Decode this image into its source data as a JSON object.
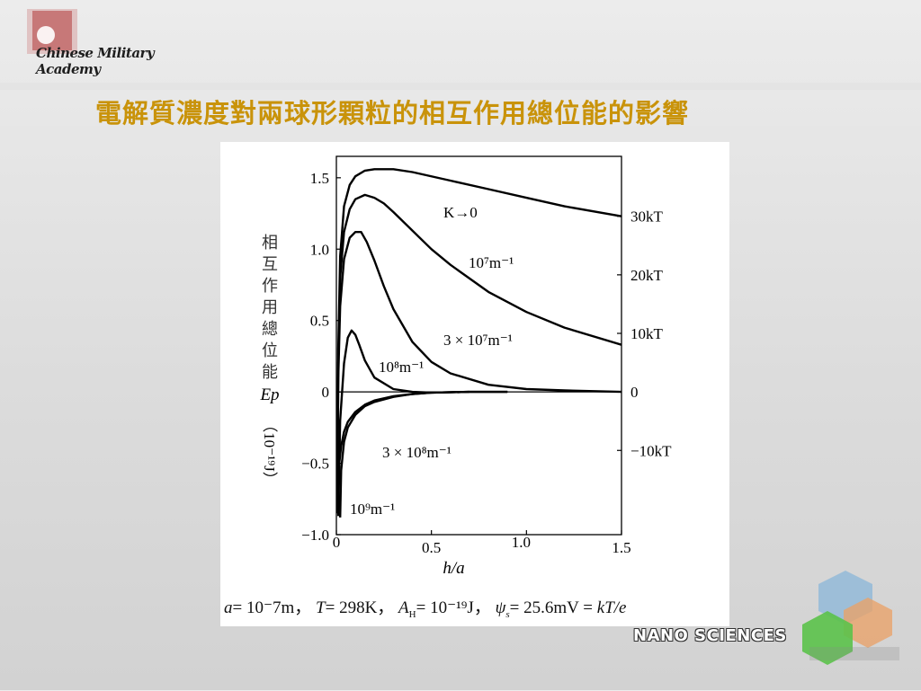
{
  "header": {
    "logo_text": "Chinese Military Academy",
    "title": "電解質濃度對兩球形顆粒的相互作用總位能的影響"
  },
  "chart_data": {
    "type": "line",
    "title": "",
    "xlabel": "h/a",
    "ylabel_chars": [
      "相",
      "互",
      "作",
      "用",
      "總",
      "位",
      "能"
    ],
    "ylabel_symbol": "Ep",
    "ylabel_unit": "（10⁻¹⁹J）",
    "xlim": [
      0,
      1.5
    ],
    "ylim": [
      -1.0,
      1.65
    ],
    "x_ticks": [
      "0",
      "0.5",
      "1.0",
      "1.5"
    ],
    "y_ticks": [
      "1.5",
      "1.0",
      "0.5",
      "0",
      "−0.5",
      "−1.0"
    ],
    "right_axis_ticks": [
      {
        "label": "30kT",
        "value": 1.23
      },
      {
        "label": "20kT",
        "value": 0.82
      },
      {
        "label": "10kT",
        "value": 0.41
      },
      {
        "label": "0",
        "value": 0
      },
      {
        "label": "−10kT",
        "value": -0.41
      }
    ],
    "series": [
      {
        "name": "K→0",
        "x": [
          0.005,
          0.01,
          0.02,
          0.04,
          0.07,
          0.1,
          0.15,
          0.2,
          0.3,
          0.4,
          0.6,
          0.8,
          1.0,
          1.2,
          1.5
        ],
        "y": [
          -0.8,
          0.3,
          0.95,
          1.3,
          1.45,
          1.51,
          1.55,
          1.56,
          1.56,
          1.54,
          1.48,
          1.42,
          1.36,
          1.3,
          1.23
        ]
      },
      {
        "name": "10⁷m⁻¹",
        "x": [
          0.005,
          0.01,
          0.02,
          0.04,
          0.07,
          0.1,
          0.15,
          0.2,
          0.25,
          0.3,
          0.4,
          0.5,
          0.6,
          0.8,
          1.0,
          1.2,
          1.5
        ],
        "y": [
          -0.8,
          0.2,
          0.8,
          1.12,
          1.28,
          1.35,
          1.38,
          1.36,
          1.32,
          1.26,
          1.13,
          1.0,
          0.89,
          0.7,
          0.56,
          0.45,
          0.33
        ]
      },
      {
        "name": "3 × 10⁷m⁻¹",
        "x": [
          0.005,
          0.01,
          0.02,
          0.04,
          0.07,
          0.1,
          0.13,
          0.16,
          0.2,
          0.25,
          0.3,
          0.4,
          0.5,
          0.6,
          0.8,
          1.0,
          1.2,
          1.5
        ],
        "y": [
          -0.85,
          0.1,
          0.6,
          0.93,
          1.08,
          1.12,
          1.12,
          1.05,
          0.92,
          0.74,
          0.58,
          0.35,
          0.21,
          0.13,
          0.05,
          0.02,
          0.01,
          0.0
        ]
      },
      {
        "name": "10⁸m⁻¹",
        "x": [
          0.01,
          0.02,
          0.04,
          0.06,
          0.08,
          0.1,
          0.12,
          0.15,
          0.2,
          0.3,
          0.4,
          0.5,
          0.7,
          0.9
        ],
        "y": [
          -0.87,
          -0.2,
          0.2,
          0.38,
          0.43,
          0.4,
          0.33,
          0.22,
          0.1,
          0.02,
          0.0,
          -0.005,
          0.0,
          0.0
        ]
      },
      {
        "name": "3 × 10⁸m⁻¹",
        "x": [
          0.015,
          0.025,
          0.04,
          0.06,
          0.1,
          0.15,
          0.2,
          0.3,
          0.4,
          0.5,
          0.7,
          0.9
        ],
        "y": [
          -0.5,
          -0.38,
          -0.28,
          -0.21,
          -0.14,
          -0.09,
          -0.06,
          -0.03,
          -0.015,
          -0.005,
          0.0,
          0.0
        ]
      },
      {
        "name": "10⁹m⁻¹",
        "x": [
          0.02,
          0.025,
          0.04,
          0.06,
          0.1,
          0.15,
          0.2,
          0.3,
          0.4,
          0.5,
          0.7
        ],
        "y": [
          -0.88,
          -0.55,
          -0.35,
          -0.25,
          -0.16,
          -0.1,
          -0.07,
          -0.035,
          -0.015,
          -0.005,
          0.0
        ]
      }
    ],
    "grid": false,
    "caption": {
      "a": "a",
      "a_val": "= 10⁻7m，",
      "T": "T",
      "T_val": "= 298K，",
      "A": "A",
      "A_sub": "H",
      "A_val": "= 10⁻¹⁹J，",
      "psi": "ψ",
      "psi_sub": "s",
      "psi_val": "= 25.6mV = ",
      "kTe": "kT/e"
    }
  },
  "footer": {
    "nano_text": "NANO SCIENCES"
  },
  "colors": {
    "title": "#c9930a",
    "curve": "#000000"
  }
}
